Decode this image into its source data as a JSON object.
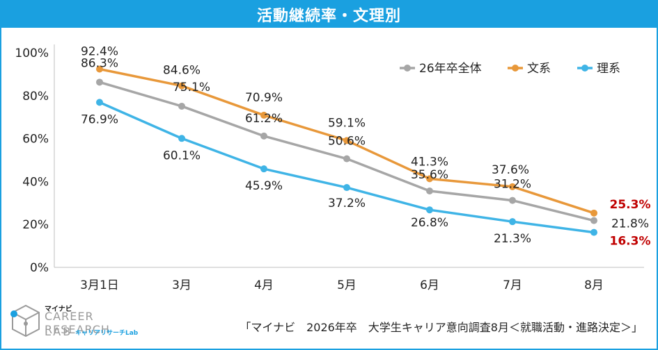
{
  "title": "活動継続率・文理別",
  "chart_data": {
    "type": "line",
    "title": "活動継続率・文理別",
    "categories": [
      "3月1日",
      "3月",
      "4月",
      "5月",
      "6月",
      "7月",
      "8月"
    ],
    "y_ticks": [
      "100%",
      "80%",
      "60%",
      "40%",
      "20%",
      "0%"
    ],
    "ylim": [
      0,
      100
    ],
    "grid": false,
    "legend_position": "top-right",
    "series": [
      {
        "name": "26年卒全体",
        "color": "#a6a6a6",
        "values": [
          86.3,
          75.1,
          61.2,
          50.6,
          35.6,
          31.2,
          21.8
        ],
        "labels": [
          "86.3%",
          "75.1%",
          "61.2%",
          "50.6%",
          "35.6%",
          "31.2%",
          "21.8%"
        ]
      },
      {
        "name": "文系",
        "color": "#e8983a",
        "values": [
          92.4,
          84.6,
          70.9,
          59.1,
          41.3,
          37.6,
          25.3
        ],
        "labels": [
          "92.4%",
          "84.6%",
          "70.9%",
          "59.1%",
          "41.3%",
          "37.6%",
          "25.3%"
        ]
      },
      {
        "name": "理系",
        "color": "#3fb4e6",
        "values": [
          76.9,
          60.1,
          45.9,
          37.2,
          26.8,
          21.3,
          16.3
        ],
        "labels": [
          "76.9%",
          "60.1%",
          "45.9%",
          "37.2%",
          "26.8%",
          "21.3%",
          "16.3%"
        ]
      }
    ],
    "highlight_color": "#c00000"
  },
  "logo": {
    "top": "マイナビ",
    "line1": "CAREER RESEARCH",
    "line2": "LAB",
    "sub": "キャリアリサーチLab"
  },
  "source": "「マイナビ　2026年卒　大学生キャリア意向調査8月＜就職活動・進路決定＞」"
}
